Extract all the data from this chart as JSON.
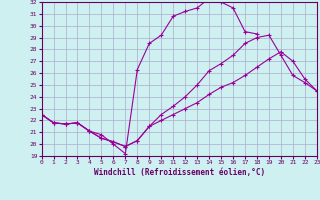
{
  "xlabel": "Windchill (Refroidissement éolien,°C)",
  "xlim": [
    0,
    23
  ],
  "ylim": [
    19,
    32
  ],
  "yticks": [
    19,
    20,
    21,
    22,
    23,
    24,
    25,
    26,
    27,
    28,
    29,
    30,
    31,
    32
  ],
  "xticks": [
    0,
    1,
    2,
    3,
    4,
    5,
    6,
    7,
    8,
    9,
    10,
    11,
    12,
    13,
    14,
    15,
    16,
    17,
    18,
    19,
    20,
    21,
    22,
    23
  ],
  "bg_color": "#cff0f0",
  "grid_color": "#aaaacc",
  "line_color": "#990099",
  "line1_x": [
    0,
    1,
    2,
    3,
    4,
    5,
    6,
    7,
    8,
    9,
    10,
    11,
    12,
    13,
    14,
    15,
    16,
    17,
    18
  ],
  "line1_y": [
    22.5,
    21.8,
    21.7,
    21.8,
    21.1,
    20.8,
    20.0,
    19.2,
    26.3,
    28.5,
    29.2,
    30.8,
    31.2,
    31.5,
    32.3,
    32.0,
    31.5,
    29.5,
    29.3
  ],
  "line2_x": [
    0,
    1,
    2,
    3,
    4,
    5,
    6,
    7,
    8,
    9,
    10,
    11,
    12,
    13,
    14,
    15,
    16,
    17,
    18,
    19,
    20,
    21,
    22,
    23
  ],
  "line2_y": [
    22.5,
    21.8,
    21.7,
    21.8,
    21.1,
    20.5,
    20.2,
    19.8,
    20.3,
    21.5,
    22.5,
    23.2,
    24.0,
    25.0,
    26.2,
    26.8,
    27.5,
    28.5,
    29.0,
    29.2,
    27.5,
    25.8,
    25.2,
    24.5
  ],
  "line3_x": [
    0,
    1,
    2,
    3,
    4,
    5,
    6,
    7,
    8,
    9,
    10,
    11,
    12,
    13,
    14,
    15,
    16,
    17,
    18,
    19,
    20,
    21,
    22,
    23
  ],
  "line3_y": [
    22.5,
    21.8,
    21.7,
    21.8,
    21.1,
    20.5,
    20.2,
    19.8,
    20.3,
    21.5,
    22.0,
    22.5,
    23.0,
    23.5,
    24.2,
    24.8,
    25.2,
    25.8,
    26.5,
    27.2,
    27.8,
    27.0,
    25.5,
    24.5
  ]
}
